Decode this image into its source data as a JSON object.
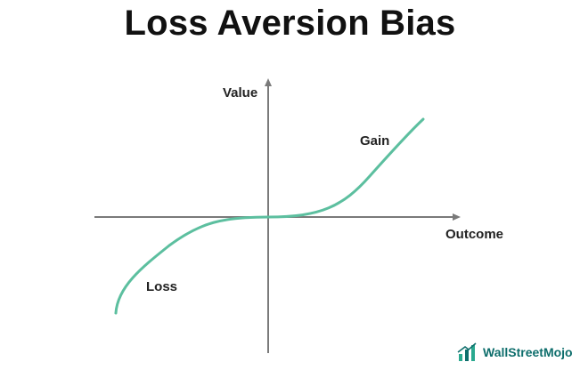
{
  "title": "Loss Aversion Bias",
  "axes": {
    "y_label": "Value",
    "x_label": "Outcome"
  },
  "curve_labels": {
    "gain": "Gain",
    "loss": "Loss"
  },
  "colors": {
    "curve": "#5cbf9f",
    "axis": "#7a7a7a",
    "text": "#222222",
    "brand": "#0e6e6c"
  },
  "brand": {
    "name": "WallStreetMojo",
    "icon": "wallstreetmojo-logo-icon"
  }
}
